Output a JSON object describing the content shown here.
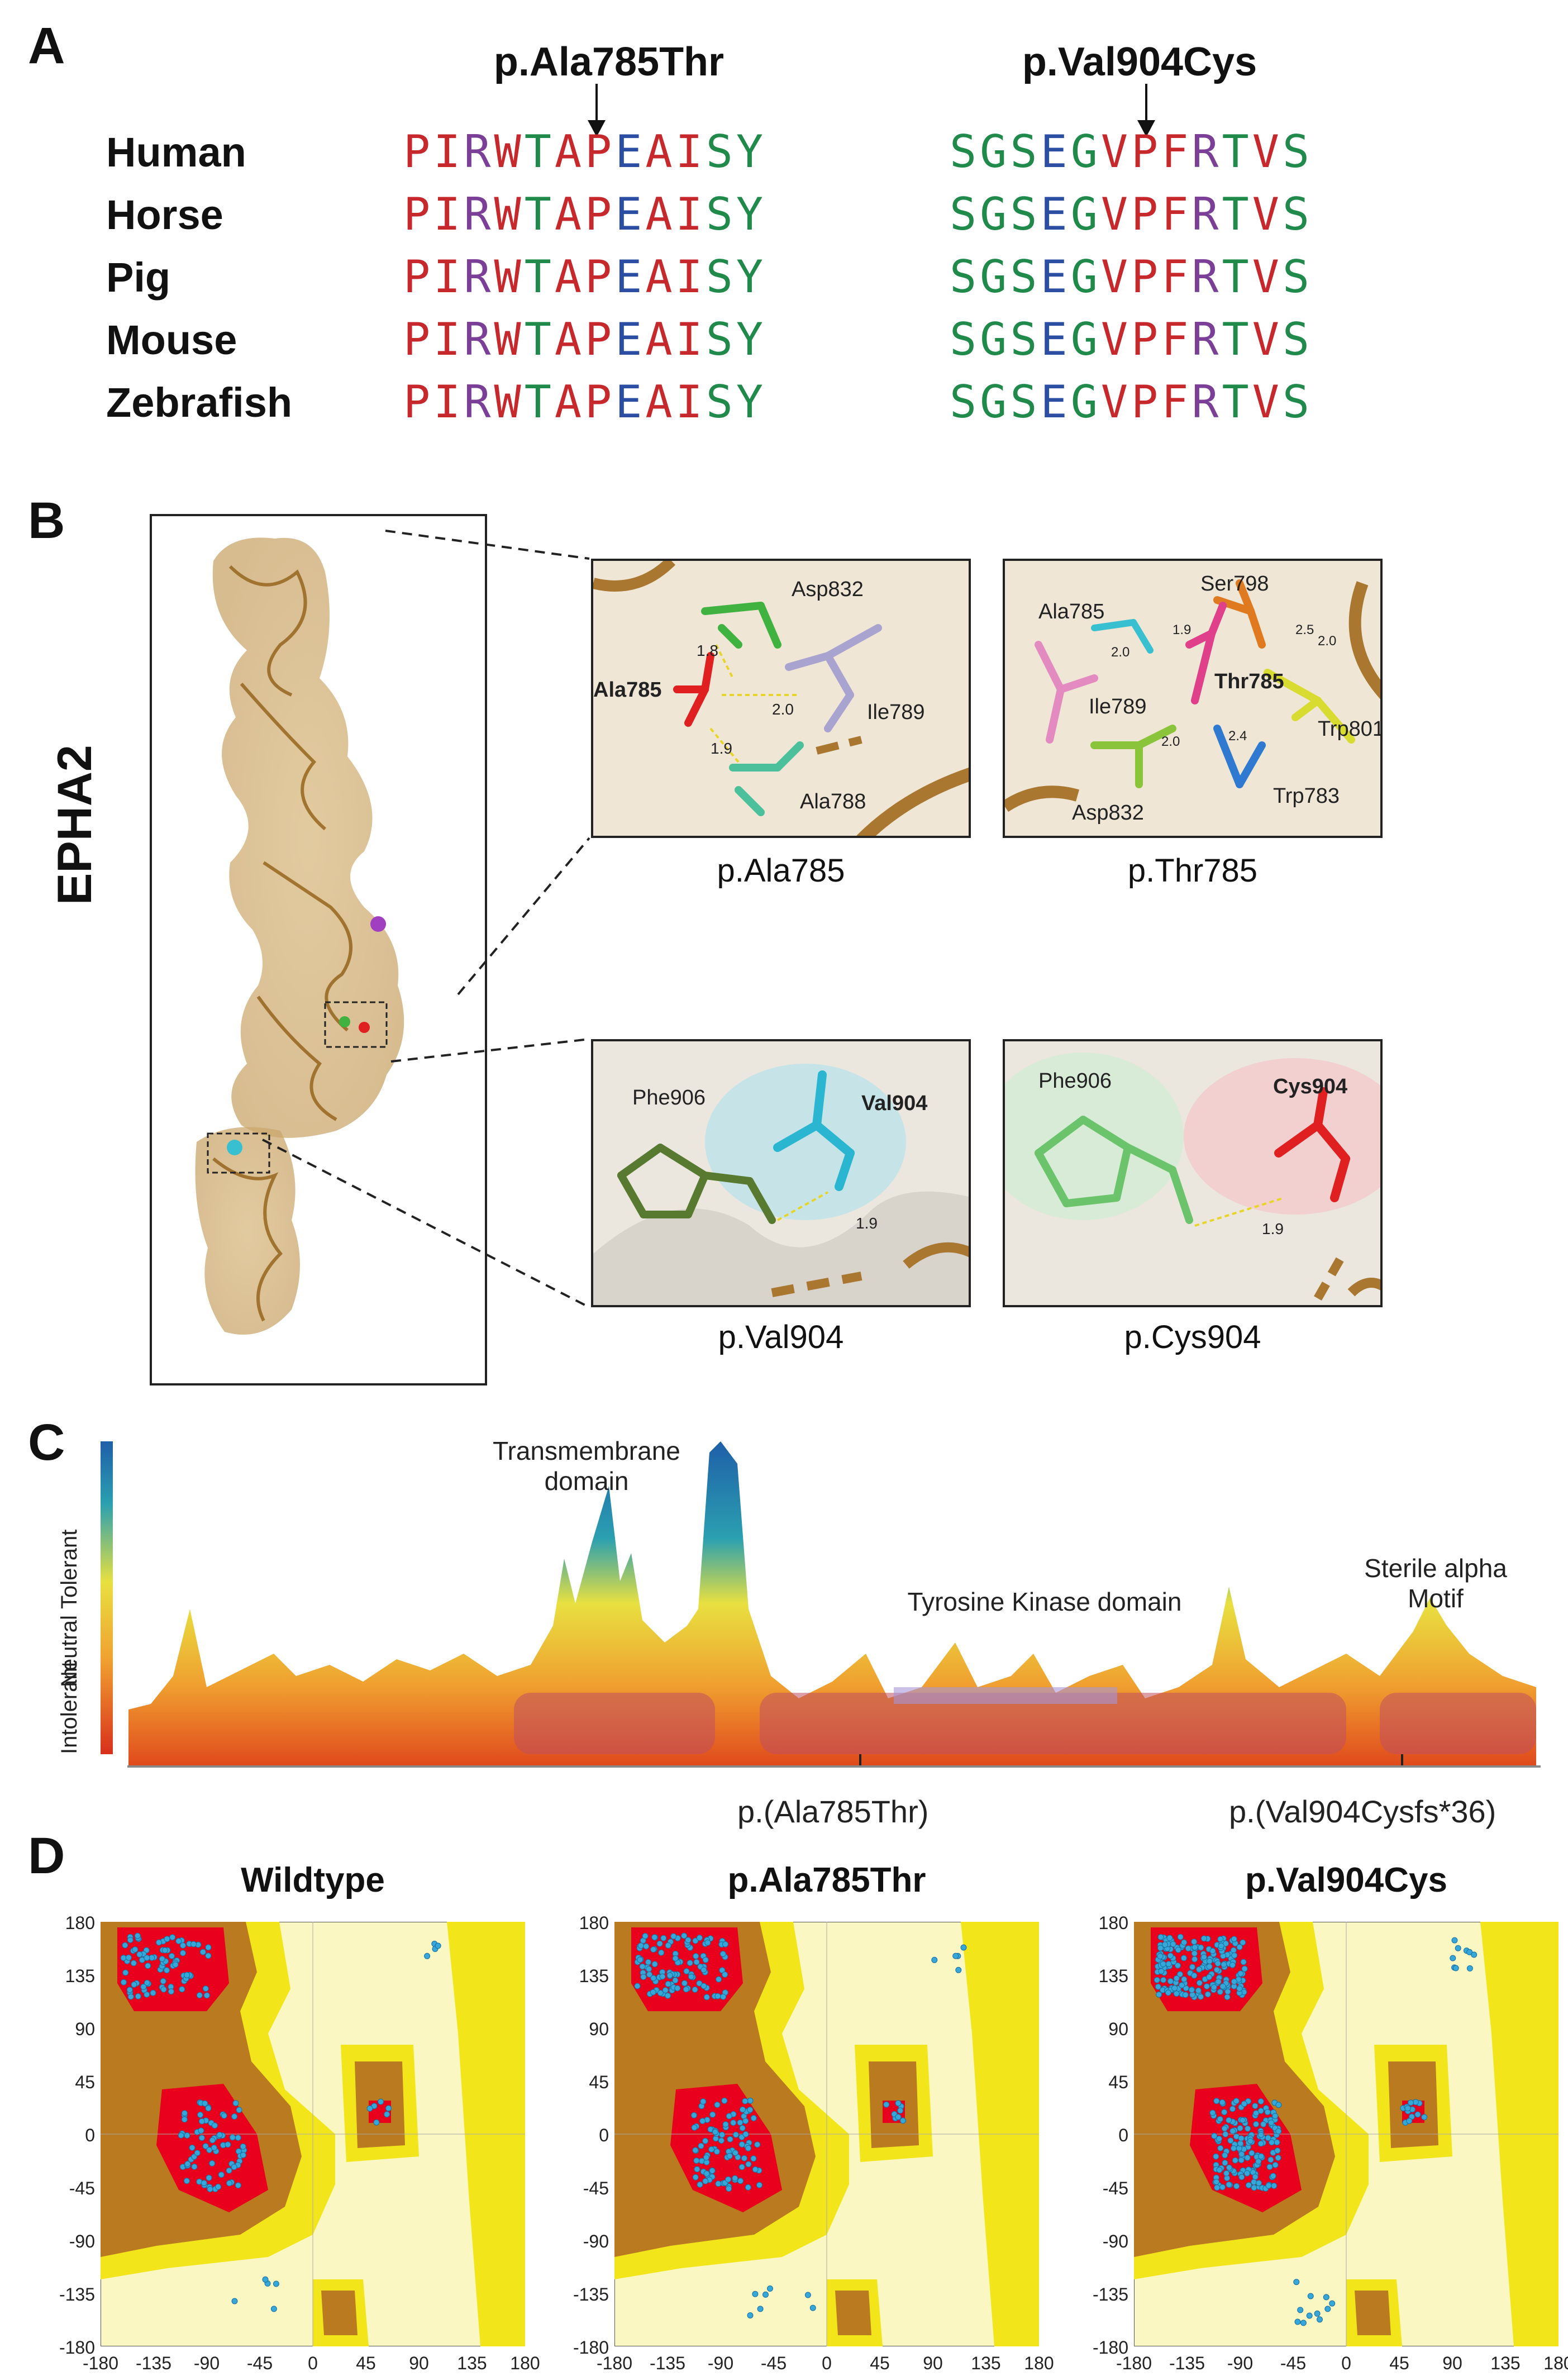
{
  "panelA": {
    "letter": "A",
    "mutations": [
      "p.Ala785Thr",
      "p.Val904Cys"
    ],
    "species": [
      "Human",
      "Horse",
      "Pig",
      "Mouse",
      "Zebrafish"
    ],
    "seq1": "PIRWTAPEAISY",
    "seq2": "SGSEGVPFRTVS"
  },
  "panelB": {
    "letter": "B",
    "protein": "EPHA2",
    "views": [
      {
        "caption": "p.Ala785",
        "labels": [
          "Asp832",
          "Ala785",
          "Ile789",
          "Ala788",
          "1.8",
          "2.0",
          "1.9"
        ]
      },
      {
        "caption": "p.Thr785",
        "labels": [
          "Ser798",
          "Ala785",
          "Thr785",
          "Ile789",
          "Trp801",
          "Asp832",
          "Trp783",
          "2.0",
          "2.0",
          "2.0",
          "2.4",
          "1.9",
          "2.5"
        ]
      },
      {
        "caption": "p.Val904",
        "labels": [
          "Phe906",
          "Val904",
          "1.9"
        ]
      },
      {
        "caption": "p.Cys904",
        "labels": [
          "Phe906",
          "Cys904",
          "1.9"
        ]
      }
    ]
  },
  "panelC": {
    "letter": "C",
    "legend": [
      "Tolerant",
      "Neutral",
      "Intolerant"
    ],
    "domains": [
      "Transmembrane domain",
      "Tyrosine Kinase domain",
      "Sterile alpha Motif"
    ],
    "variants": [
      "p.(Ala785Thr)",
      "p.(Val904Cysfs*36)"
    ]
  },
  "panelD": {
    "letter": "D",
    "titles": [
      "Wildtype",
      "p.Ala785Thr",
      "p.Val904Cys"
    ],
    "yticks": [
      "180",
      "135",
      "90",
      "45",
      "0",
      "-45",
      "-90",
      "-135",
      "-180"
    ],
    "xticks": [
      "-180",
      "-135",
      "-90",
      "-45",
      "0",
      "45",
      "90",
      "135",
      "180"
    ]
  },
  "colors": {
    "favoured": "#e8001c",
    "allowed": "#b97a20",
    "generous": "#f2e61a",
    "background": "#fbf7c2",
    "points": "#35a7d8"
  }
}
